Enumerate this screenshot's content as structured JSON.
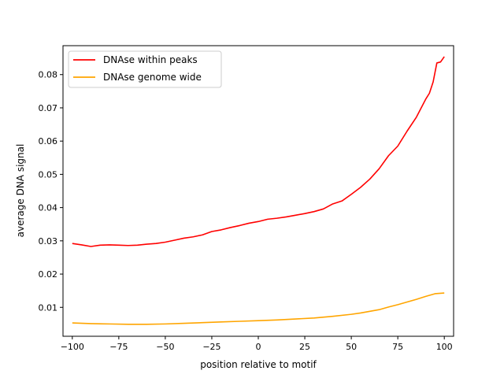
{
  "chart_data": {
    "type": "line",
    "title": "",
    "xlabel": "position relative to motif",
    "ylabel": "average DNA signal",
    "xlim": [
      -105,
      105
    ],
    "ylim": [
      0.0013,
      0.0887
    ],
    "xticks": [
      -100,
      -75,
      -50,
      -25,
      0,
      25,
      50,
      75,
      100
    ],
    "yticks": [
      0.01,
      0.02,
      0.03,
      0.04,
      0.05,
      0.06,
      0.07,
      0.08
    ],
    "xtick_labels": [
      "−100",
      "−75",
      "−50",
      "−25",
      "0",
      "25",
      "50",
      "75",
      "100"
    ],
    "ytick_labels": [
      "0.01",
      "0.02",
      "0.03",
      "0.04",
      "0.05",
      "0.06",
      "0.07",
      "0.08"
    ],
    "grid": false,
    "legend_position": "top-left",
    "series": [
      {
        "name": "DNAse within peaks",
        "color": "#ff0000",
        "x": [
          -100,
          -95,
          -90,
          -85,
          -80,
          -75,
          -70,
          -65,
          -60,
          -55,
          -50,
          -45,
          -40,
          -35,
          -30,
          -25,
          -20,
          -15,
          -10,
          -5,
          0,
          5,
          10,
          15,
          20,
          25,
          30,
          35,
          40,
          45,
          50,
          55,
          60,
          65,
          70,
          75,
          80,
          85,
          90,
          92,
          94,
          96,
          98,
          100
        ],
        "y": [
          0.0292,
          0.0288,
          0.0283,
          0.0287,
          0.0288,
          0.0287,
          0.0286,
          0.0287,
          0.029,
          0.0292,
          0.0296,
          0.0302,
          0.0308,
          0.0312,
          0.0318,
          0.0328,
          0.0333,
          0.034,
          0.0346,
          0.0353,
          0.0358,
          0.0365,
          0.0368,
          0.0372,
          0.0377,
          0.0382,
          0.0388,
          0.0396,
          0.0411,
          0.042,
          0.044,
          0.0461,
          0.0486,
          0.0517,
          0.0556,
          0.0585,
          0.063,
          0.0672,
          0.0726,
          0.0744,
          0.0778,
          0.0835,
          0.0838,
          0.0854
        ]
      },
      {
        "name": "DNAse genome wide",
        "color": "#ffa500",
        "x": [
          -100,
          -90,
          -80,
          -70,
          -60,
          -50,
          -40,
          -30,
          -20,
          -10,
          0,
          10,
          20,
          30,
          40,
          50,
          55,
          60,
          65,
          70,
          75,
          80,
          85,
          90,
          95,
          100
        ],
        "y": [
          0.0053,
          0.0051,
          0.005,
          0.0049,
          0.0049,
          0.005,
          0.0052,
          0.0054,
          0.0056,
          0.0058,
          0.006,
          0.0062,
          0.0065,
          0.0068,
          0.0073,
          0.0079,
          0.0083,
          0.0088,
          0.0093,
          0.0101,
          0.0108,
          0.0116,
          0.0124,
          0.0133,
          0.0141,
          0.0143
        ]
      }
    ]
  }
}
